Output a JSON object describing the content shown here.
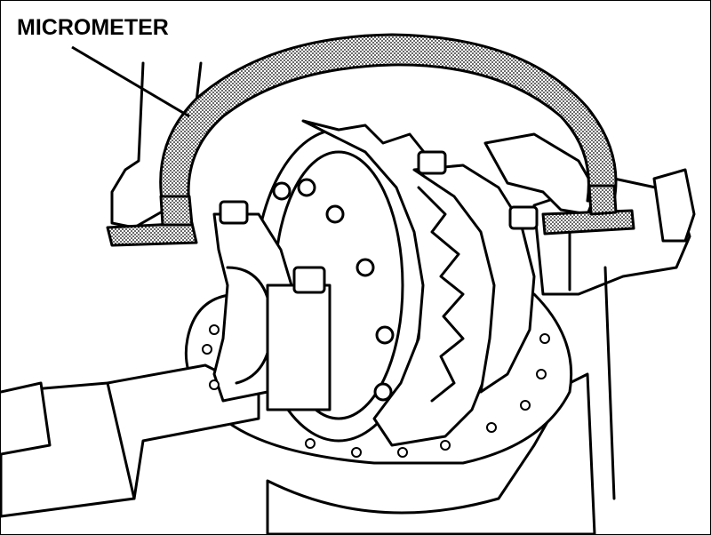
{
  "callout": {
    "label": "MICROMETER"
  },
  "colors": {
    "ink": "#000000",
    "paper": "#ffffff",
    "stipple": "#9a9a9a"
  }
}
